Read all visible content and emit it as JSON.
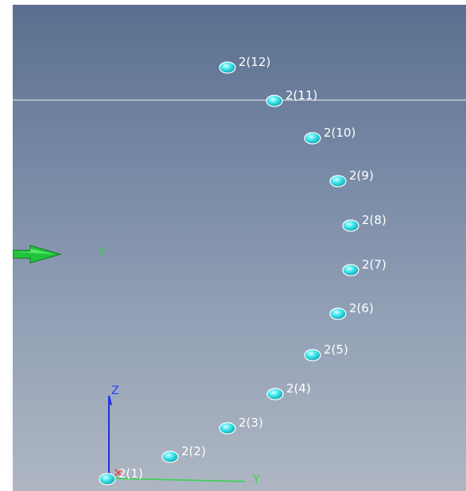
{
  "viewport": {
    "background_top": "#5a6f8f",
    "background_bottom": "#aeb6c2",
    "node_color": "#39e6ee",
    "guide_line_color": "#ffffff"
  },
  "cursor": {
    "icon": "green-arrow-cursor-icon",
    "label": "Y",
    "color": "#2fd64a"
  },
  "triad": {
    "z_label": "Z",
    "y_label": "Y",
    "x_marker": "×",
    "z_color": "#2a3cff",
    "y_color": "#2fd64a",
    "x_color": "#ff3030"
  },
  "nodes": [
    {
      "label": "2(1)"
    },
    {
      "label": "2(2)"
    },
    {
      "label": "2(3)"
    },
    {
      "label": "2(4)"
    },
    {
      "label": "2(5)"
    },
    {
      "label": "2(6)"
    },
    {
      "label": "2(7)"
    },
    {
      "label": "2(8)"
    },
    {
      "label": "2(9)"
    },
    {
      "label": "2(10)"
    },
    {
      "label": "2(11)"
    },
    {
      "label": "2(12)"
    }
  ]
}
